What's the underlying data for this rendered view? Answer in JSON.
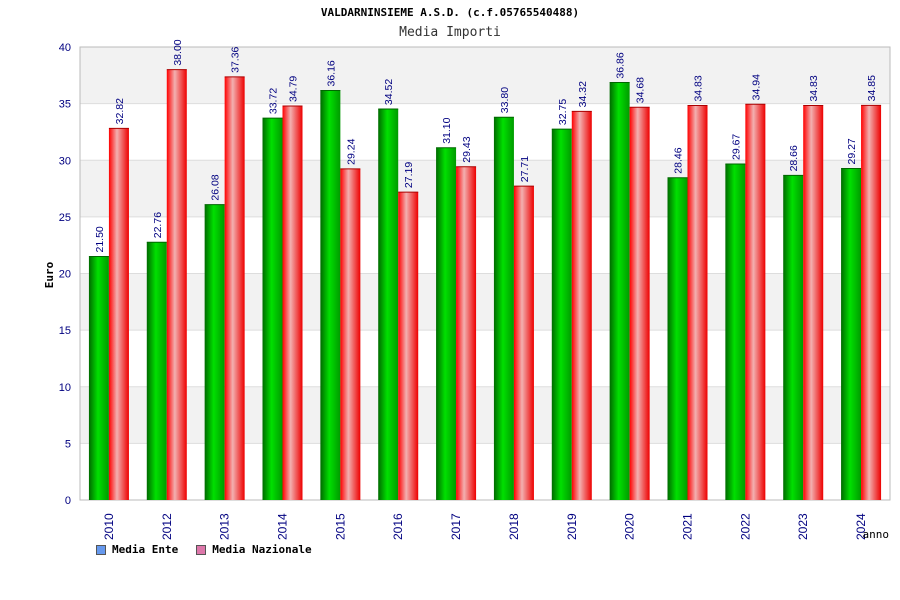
{
  "chart_data": {
    "type": "bar",
    "title": "VALDARNINSIEME A.S.D. (c.f.05765540488)",
    "subtitle": "Media Importi",
    "xlabel": "anno",
    "ylabel": "Euro",
    "ylim": [
      0,
      40
    ],
    "yticks": [
      "0",
      "5",
      "10",
      "15",
      "20",
      "25",
      "30",
      "35",
      "40"
    ],
    "grid": true,
    "legend_position": "bottom-left",
    "categories": [
      "2010",
      "2012",
      "2013",
      "2014",
      "2015",
      "2016",
      "2017",
      "2018",
      "2019",
      "2020",
      "2021",
      "2022",
      "2023",
      "2024"
    ],
    "series": [
      {
        "name": "Media Ente",
        "color": "#00b400",
        "legend_color": "#6699ee",
        "values": [
          21.5,
          22.76,
          26.08,
          33.72,
          36.16,
          34.52,
          31.1,
          33.8,
          32.75,
          36.86,
          28.46,
          29.67,
          28.66,
          29.27
        ],
        "labels": [
          "21.50",
          "22.76",
          "26.08",
          "33.72",
          "36.16",
          "34.52",
          "31.10",
          "33.80",
          "32.75",
          "36.86",
          "28.46",
          "29.67",
          "28.66",
          "29.27"
        ]
      },
      {
        "name": "Media Nazionale",
        "color": "#ee1111",
        "legend_color": "#dd77aa",
        "values": [
          32.82,
          38.0,
          37.36,
          34.79,
          29.24,
          27.19,
          29.43,
          27.71,
          34.32,
          34.68,
          34.83,
          34.94,
          34.83,
          34.85
        ],
        "labels": [
          "32.82",
          "38.00",
          "37.36",
          "34.79",
          "29.24",
          "27.19",
          "29.43",
          "27.71",
          "34.32",
          "34.68",
          "34.83",
          "34.94",
          "34.83",
          "34.85"
        ]
      }
    ]
  }
}
